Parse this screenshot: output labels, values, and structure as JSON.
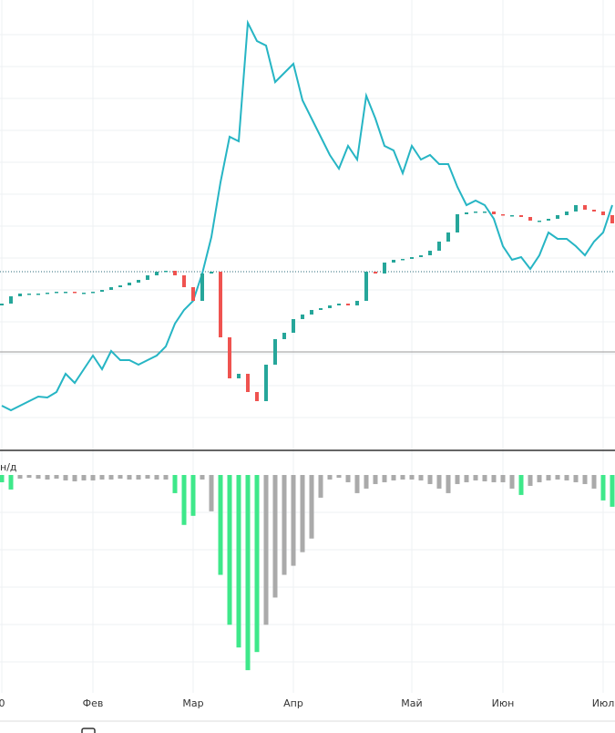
{
  "chart_data": {
    "type": "candlestick",
    "categories": [
      "0",
      null,
      null,
      null,
      null,
      null,
      null,
      null,
      null,
      null,
      "Фев",
      null,
      null,
      null,
      null,
      null,
      null,
      null,
      null,
      null,
      null,
      "Мар",
      null,
      null,
      null,
      null,
      null,
      null,
      null,
      null,
      null,
      null,
      "Апр",
      null,
      null,
      null,
      null,
      null,
      null,
      null,
      null,
      null,
      null,
      null,
      null,
      "Май",
      null,
      null,
      null,
      null,
      null,
      null,
      null,
      null,
      null,
      "Июн",
      null,
      null,
      null,
      null,
      null,
      null,
      null,
      null,
      null,
      null,
      "Июл",
      null
    ],
    "ylim": [
      0,
      492
    ],
    "open": [
      157,
      159,
      167,
      170,
      170,
      170,
      171,
      172,
      172,
      171,
      171,
      172,
      174,
      177,
      179,
      182,
      185,
      190,
      194,
      195,
      190,
      177,
      162,
      192,
      194,
      122,
      77,
      82,
      62,
      52,
      92,
      120,
      127,
      142,
      147,
      152,
      154,
      157,
      159,
      157,
      162,
      194,
      192,
      204,
      207,
      208,
      210,
      212,
      217,
      227,
      237,
      257,
      259,
      260,
      260,
      257,
      256,
      256,
      254,
      250,
      250,
      252,
      256,
      260,
      267,
      262,
      260,
      256
    ],
    "close": [
      159,
      167,
      170,
      170,
      170,
      171,
      172,
      172,
      171,
      171,
      172,
      174,
      177,
      179,
      182,
      185,
      190,
      194,
      195,
      190,
      177,
      162,
      192,
      194,
      122,
      77,
      82,
      62,
      52,
      92,
      120,
      127,
      142,
      147,
      152,
      154,
      157,
      159,
      157,
      162,
      194,
      192,
      204,
      207,
      208,
      210,
      212,
      217,
      227,
      237,
      257,
      259,
      260,
      260,
      257,
      256,
      256,
      254,
      250,
      250,
      252,
      256,
      260,
      267,
      262,
      260,
      256,
      247
    ],
    "up_color": "#26a69a",
    "down_color": "#ef5350",
    "line": {
      "color": "#26b5c4",
      "values": [
        47,
        42,
        47,
        52,
        57,
        56,
        62,
        82,
        72,
        87,
        102,
        87,
        107,
        97,
        97,
        92,
        97,
        102,
        112,
        137,
        152,
        162,
        192,
        232,
        292,
        342,
        337,
        467,
        447,
        442,
        402,
        412,
        422,
        382,
        362,
        342,
        322,
        307,
        332,
        317,
        387,
        362,
        332,
        327,
        302,
        332,
        317,
        322,
        312,
        312,
        287,
        267,
        272,
        267,
        252,
        222,
        207,
        210,
        197,
        212,
        237,
        230,
        230,
        222,
        212,
        227,
        237,
        267
      ]
    },
    "price_line": 194,
    "reference_line": 106,
    "indicator": {
      "label": "н/д",
      "ylim": [
        -240,
        0
      ],
      "values": [
        -8,
        -16,
        -4,
        -3,
        -4,
        -5,
        -4,
        -6,
        -7,
        -6,
        -6,
        -5,
        -5,
        -4,
        -5,
        -5,
        -4,
        -5,
        -5,
        -20,
        -55,
        -45,
        -5,
        -40,
        -110,
        -165,
        -190,
        -215,
        -195,
        -165,
        -135,
        -110,
        -100,
        -85,
        -70,
        -25,
        -5,
        -3,
        -8,
        -20,
        -15,
        -10,
        -8,
        -6,
        -5,
        -5,
        -6,
        -10,
        -15,
        -20,
        -10,
        -8,
        -6,
        -7,
        -8,
        -8,
        -15,
        -22,
        -12,
        -8,
        -6,
        -5,
        -6,
        -8,
        -10,
        -15,
        -28,
        -35
      ],
      "colors": [
        "#3ee88a",
        "#3ee88a",
        "#aaa",
        "#aaa",
        "#aaa",
        "#aaa",
        "#aaa",
        "#aaa",
        "#aaa",
        "#aaa",
        "#aaa",
        "#aaa",
        "#aaa",
        "#aaa",
        "#aaa",
        "#aaa",
        "#aaa",
        "#aaa",
        "#aaa",
        "#3ee88a",
        "#3ee88a",
        "#3ee88a",
        "#aaa",
        "#aaa",
        "#3ee88a",
        "#3ee88a",
        "#3ee88a",
        "#3ee88a",
        "#3ee88a",
        "#aaa",
        "#aaa",
        "#aaa",
        "#aaa",
        "#aaa",
        "#aaa",
        "#aaa",
        "#aaa",
        "#aaa",
        "#aaa",
        "#aaa",
        "#aaa",
        "#aaa",
        "#aaa",
        "#aaa",
        "#aaa",
        "#aaa",
        "#aaa",
        "#aaa",
        "#aaa",
        "#aaa",
        "#aaa",
        "#aaa",
        "#aaa",
        "#aaa",
        "#aaa",
        "#aaa",
        "#aaa",
        "#3ee88a",
        "#aaa",
        "#aaa",
        "#aaa",
        "#aaa",
        "#aaa",
        "#aaa",
        "#aaa",
        "#aaa",
        "#3ee88a",
        "#3ee88a"
      ]
    }
  }
}
